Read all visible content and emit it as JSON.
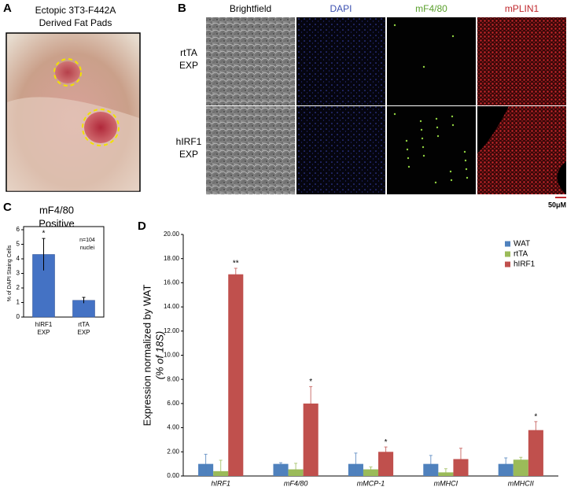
{
  "figure": {
    "panel_a": {
      "label": "A",
      "title": [
        "Ectopic 3T3-F442A",
        "Derived Fat Pads"
      ]
    },
    "panel_b": {
      "label": "B",
      "columns": [
        "Brightfield",
        "DAPI",
        "mF4/80",
        "mPLIN1"
      ],
      "column_colors": [
        "#000000",
        "#3a4fb0",
        "#5aa02c",
        "#c0282d"
      ],
      "rows": [
        [
          "rtTA",
          "EXP"
        ],
        [
          "hIRF1",
          "EXP"
        ]
      ],
      "scale_bar": "50μM"
    }
  },
  "chart_data": [
    {
      "type": "bar",
      "panel_label": "C",
      "title": [
        "mF4/80",
        "Positive"
      ],
      "y_label": "% of DAPI Staing Cells",
      "categories": [
        [
          "hIRF1",
          "EXP"
        ],
        [
          "rtTA",
          "EXP"
        ]
      ],
      "values": [
        4.3,
        1.15
      ],
      "errors": [
        1.1,
        0.2
      ],
      "color": "#4472c4",
      "annotations": [
        "*",
        null
      ],
      "note": [
        "n=104",
        "nuclei"
      ],
      "ylim": [
        0,
        6
      ],
      "yticks": [
        0,
        1,
        2,
        3,
        4,
        5,
        6
      ]
    },
    {
      "type": "bar",
      "panel_label": "D",
      "y_label": [
        "Expression normalized by WAT",
        "(% of 18S)"
      ],
      "categories": [
        "hIRF1",
        "mF4/80",
        "mMCP-1",
        "mMHCI",
        "mMHCII"
      ],
      "series": [
        {
          "name": "WAT",
          "color": "#4f81bd",
          "values": [
            1,
            1,
            1,
            1,
            1
          ],
          "errors": [
            0.8,
            0.1,
            0.9,
            0.7,
            0.5
          ]
        },
        {
          "name": "rtTA",
          "color": "#9bbb59",
          "values": [
            0.4,
            0.55,
            0.55,
            0.3,
            1.35
          ],
          "errors": [
            0.9,
            0.5,
            0.2,
            0.3,
            0.2
          ]
        },
        {
          "name": "hIRF1",
          "color": "#c0504d",
          "values": [
            16.7,
            6.0,
            2.0,
            1.4,
            3.8
          ],
          "errors": [
            0.5,
            1.4,
            0.4,
            0.9,
            0.7
          ]
        }
      ],
      "annotations": [
        "**",
        "*",
        "*",
        null,
        "*"
      ],
      "ylim": [
        0,
        20
      ],
      "yticks": [
        {
          "value": 0,
          "label": "0.00"
        },
        {
          "value": 2,
          "label": "2.00"
        },
        {
          "value": 4,
          "label": "4.00"
        },
        {
          "value": 6,
          "label": "6.00"
        },
        {
          "value": 8,
          "label": "8.00"
        },
        {
          "value": 10,
          "label": "10.00"
        },
        {
          "value": 12,
          "label": "12.00"
        },
        {
          "value": 14,
          "label": "14.00"
        },
        {
          "value": 16,
          "label": "16.00"
        },
        {
          "value": 18,
          "label": "18.00"
        },
        {
          "value": 20,
          "label": "20.00"
        }
      ],
      "legend": "top-right"
    }
  ]
}
